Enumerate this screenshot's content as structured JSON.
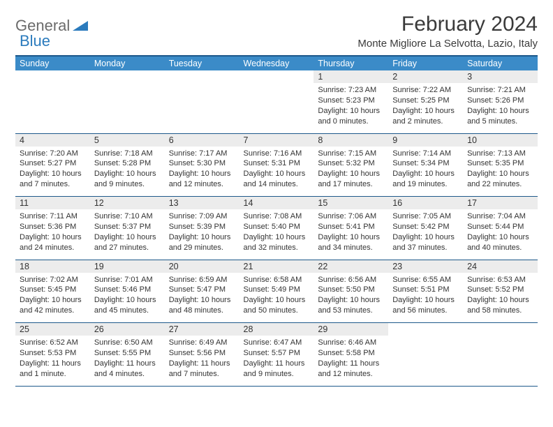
{
  "logo": {
    "word1": "General",
    "word2": "Blue"
  },
  "title": "February 2024",
  "location": "Monte Migliore La Selvotta, Lazio, Italy",
  "colors": {
    "header_bg": "#3b8bc8",
    "header_border": "#1d588a",
    "daynum_bg": "#ececec",
    "text": "#333333",
    "logo_gray": "#6b6b6b",
    "logo_blue": "#2b7bbd"
  },
  "day_headers": [
    "Sunday",
    "Monday",
    "Tuesday",
    "Wednesday",
    "Thursday",
    "Friday",
    "Saturday"
  ],
  "weeks": [
    {
      "nums": [
        "",
        "",
        "",
        "",
        "1",
        "2",
        "3"
      ],
      "cells": [
        null,
        null,
        null,
        null,
        {
          "sunrise": "Sunrise: 7:23 AM",
          "sunset": "Sunset: 5:23 PM",
          "daylight": "Daylight: 10 hours and 0 minutes."
        },
        {
          "sunrise": "Sunrise: 7:22 AM",
          "sunset": "Sunset: 5:25 PM",
          "daylight": "Daylight: 10 hours and 2 minutes."
        },
        {
          "sunrise": "Sunrise: 7:21 AM",
          "sunset": "Sunset: 5:26 PM",
          "daylight": "Daylight: 10 hours and 5 minutes."
        }
      ]
    },
    {
      "nums": [
        "4",
        "5",
        "6",
        "7",
        "8",
        "9",
        "10"
      ],
      "cells": [
        {
          "sunrise": "Sunrise: 7:20 AM",
          "sunset": "Sunset: 5:27 PM",
          "daylight": "Daylight: 10 hours and 7 minutes."
        },
        {
          "sunrise": "Sunrise: 7:18 AM",
          "sunset": "Sunset: 5:28 PM",
          "daylight": "Daylight: 10 hours and 9 minutes."
        },
        {
          "sunrise": "Sunrise: 7:17 AM",
          "sunset": "Sunset: 5:30 PM",
          "daylight": "Daylight: 10 hours and 12 minutes."
        },
        {
          "sunrise": "Sunrise: 7:16 AM",
          "sunset": "Sunset: 5:31 PM",
          "daylight": "Daylight: 10 hours and 14 minutes."
        },
        {
          "sunrise": "Sunrise: 7:15 AM",
          "sunset": "Sunset: 5:32 PM",
          "daylight": "Daylight: 10 hours and 17 minutes."
        },
        {
          "sunrise": "Sunrise: 7:14 AM",
          "sunset": "Sunset: 5:34 PM",
          "daylight": "Daylight: 10 hours and 19 minutes."
        },
        {
          "sunrise": "Sunrise: 7:13 AM",
          "sunset": "Sunset: 5:35 PM",
          "daylight": "Daylight: 10 hours and 22 minutes."
        }
      ]
    },
    {
      "nums": [
        "11",
        "12",
        "13",
        "14",
        "15",
        "16",
        "17"
      ],
      "cells": [
        {
          "sunrise": "Sunrise: 7:11 AM",
          "sunset": "Sunset: 5:36 PM",
          "daylight": "Daylight: 10 hours and 24 minutes."
        },
        {
          "sunrise": "Sunrise: 7:10 AM",
          "sunset": "Sunset: 5:37 PM",
          "daylight": "Daylight: 10 hours and 27 minutes."
        },
        {
          "sunrise": "Sunrise: 7:09 AM",
          "sunset": "Sunset: 5:39 PM",
          "daylight": "Daylight: 10 hours and 29 minutes."
        },
        {
          "sunrise": "Sunrise: 7:08 AM",
          "sunset": "Sunset: 5:40 PM",
          "daylight": "Daylight: 10 hours and 32 minutes."
        },
        {
          "sunrise": "Sunrise: 7:06 AM",
          "sunset": "Sunset: 5:41 PM",
          "daylight": "Daylight: 10 hours and 34 minutes."
        },
        {
          "sunrise": "Sunrise: 7:05 AM",
          "sunset": "Sunset: 5:42 PM",
          "daylight": "Daylight: 10 hours and 37 minutes."
        },
        {
          "sunrise": "Sunrise: 7:04 AM",
          "sunset": "Sunset: 5:44 PM",
          "daylight": "Daylight: 10 hours and 40 minutes."
        }
      ]
    },
    {
      "nums": [
        "18",
        "19",
        "20",
        "21",
        "22",
        "23",
        "24"
      ],
      "cells": [
        {
          "sunrise": "Sunrise: 7:02 AM",
          "sunset": "Sunset: 5:45 PM",
          "daylight": "Daylight: 10 hours and 42 minutes."
        },
        {
          "sunrise": "Sunrise: 7:01 AM",
          "sunset": "Sunset: 5:46 PM",
          "daylight": "Daylight: 10 hours and 45 minutes."
        },
        {
          "sunrise": "Sunrise: 6:59 AM",
          "sunset": "Sunset: 5:47 PM",
          "daylight": "Daylight: 10 hours and 48 minutes."
        },
        {
          "sunrise": "Sunrise: 6:58 AM",
          "sunset": "Sunset: 5:49 PM",
          "daylight": "Daylight: 10 hours and 50 minutes."
        },
        {
          "sunrise": "Sunrise: 6:56 AM",
          "sunset": "Sunset: 5:50 PM",
          "daylight": "Daylight: 10 hours and 53 minutes."
        },
        {
          "sunrise": "Sunrise: 6:55 AM",
          "sunset": "Sunset: 5:51 PM",
          "daylight": "Daylight: 10 hours and 56 minutes."
        },
        {
          "sunrise": "Sunrise: 6:53 AM",
          "sunset": "Sunset: 5:52 PM",
          "daylight": "Daylight: 10 hours and 58 minutes."
        }
      ]
    },
    {
      "nums": [
        "25",
        "26",
        "27",
        "28",
        "29",
        "",
        ""
      ],
      "cells": [
        {
          "sunrise": "Sunrise: 6:52 AM",
          "sunset": "Sunset: 5:53 PM",
          "daylight": "Daylight: 11 hours and 1 minute."
        },
        {
          "sunrise": "Sunrise: 6:50 AM",
          "sunset": "Sunset: 5:55 PM",
          "daylight": "Daylight: 11 hours and 4 minutes."
        },
        {
          "sunrise": "Sunrise: 6:49 AM",
          "sunset": "Sunset: 5:56 PM",
          "daylight": "Daylight: 11 hours and 7 minutes."
        },
        {
          "sunrise": "Sunrise: 6:47 AM",
          "sunset": "Sunset: 5:57 PM",
          "daylight": "Daylight: 11 hours and 9 minutes."
        },
        {
          "sunrise": "Sunrise: 6:46 AM",
          "sunset": "Sunset: 5:58 PM",
          "daylight": "Daylight: 11 hours and 12 minutes."
        },
        null,
        null
      ]
    }
  ]
}
